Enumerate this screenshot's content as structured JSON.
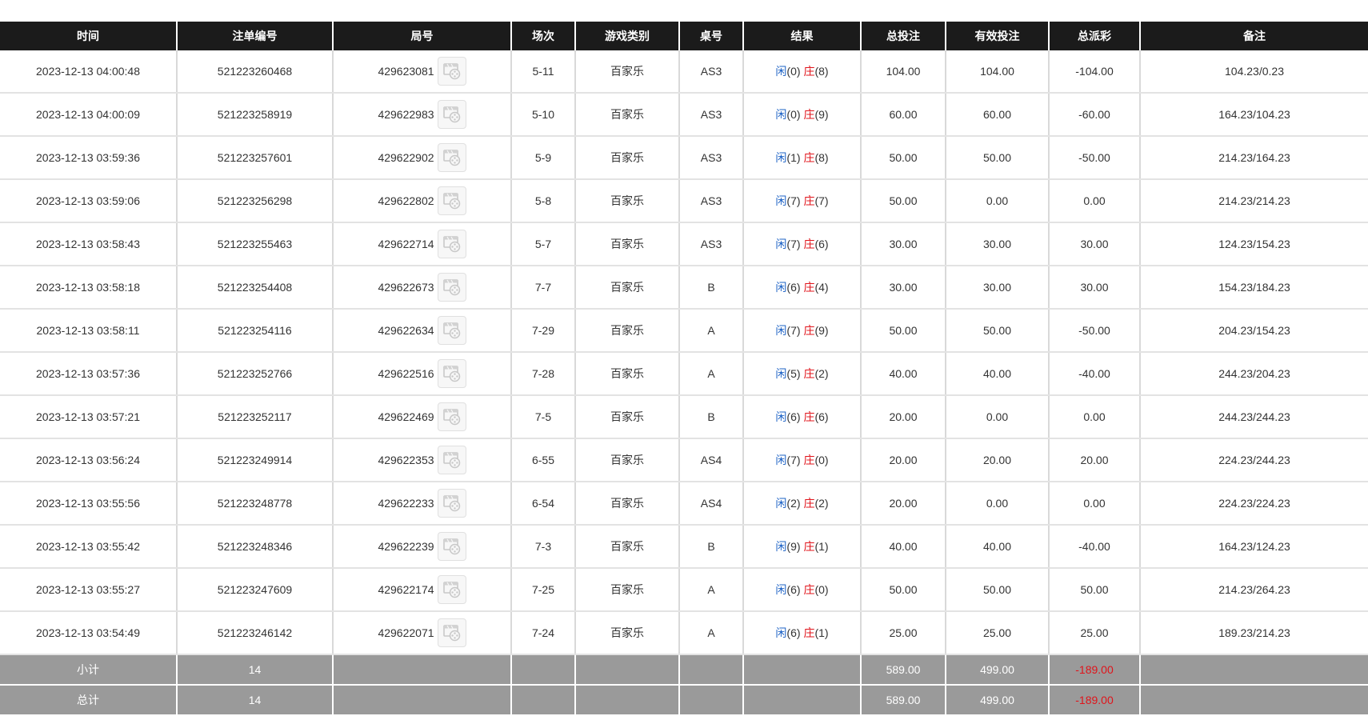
{
  "columns": [
    "时间",
    "注单编号",
    "局号",
    "场次",
    "游戏类别",
    "桌号",
    "结果",
    "总投注",
    "有效投注",
    "总派彩",
    "备注"
  ],
  "labels": {
    "player": "闲",
    "banker": "庄"
  },
  "icons": {
    "replay": "video-replay-icon"
  },
  "colors": {
    "header_bg": "#1b1b1b",
    "summary_bg": "#9a9a9a",
    "player_blue": "#1e63c6",
    "banker_red": "#e0141b"
  },
  "rows": [
    {
      "time": "2023-12-13 04:00:48",
      "bet_id": "521223260468",
      "round": "429623081",
      "session": "5-11",
      "game": "百家乐",
      "table": "AS3",
      "player": "(0)",
      "banker": "(8)",
      "total_bet": "104.00",
      "valid_bet": "104.00",
      "payout": "-104.00",
      "payout_negative": true,
      "note": "104.23/0.23"
    },
    {
      "time": "2023-12-13 04:00:09",
      "bet_id": "521223258919",
      "round": "429622983",
      "session": "5-10",
      "game": "百家乐",
      "table": "AS3",
      "player": "(0)",
      "banker": "(9)",
      "total_bet": "60.00",
      "valid_bet": "60.00",
      "payout": "-60.00",
      "payout_negative": true,
      "note": "164.23/104.23"
    },
    {
      "time": "2023-12-13 03:59:36",
      "bet_id": "521223257601",
      "round": "429622902",
      "session": "5-9",
      "game": "百家乐",
      "table": "AS3",
      "player": "(1)",
      "banker": "(8)",
      "total_bet": "50.00",
      "valid_bet": "50.00",
      "payout": "-50.00",
      "payout_negative": true,
      "note": "214.23/164.23"
    },
    {
      "time": "2023-12-13 03:59:06",
      "bet_id": "521223256298",
      "round": "429622802",
      "session": "5-8",
      "game": "百家乐",
      "table": "AS3",
      "player": "(7)",
      "banker": "(7)",
      "total_bet": "50.00",
      "valid_bet": "0.00",
      "payout": "0.00",
      "payout_negative": false,
      "note": "214.23/214.23"
    },
    {
      "time": "2023-12-13 03:58:43",
      "bet_id": "521223255463",
      "round": "429622714",
      "session": "5-7",
      "game": "百家乐",
      "table": "AS3",
      "player": "(7)",
      "banker": "(6)",
      "total_bet": "30.00",
      "valid_bet": "30.00",
      "payout": "30.00",
      "payout_negative": false,
      "note": "124.23/154.23"
    },
    {
      "time": "2023-12-13 03:58:18",
      "bet_id": "521223254408",
      "round": "429622673",
      "session": "7-7",
      "game": "百家乐",
      "table": "B",
      "player": "(6)",
      "banker": "(4)",
      "total_bet": "30.00",
      "valid_bet": "30.00",
      "payout": "30.00",
      "payout_negative": false,
      "note": "154.23/184.23"
    },
    {
      "time": "2023-12-13 03:58:11",
      "bet_id": "521223254116",
      "round": "429622634",
      "session": "7-29",
      "game": "百家乐",
      "table": "A",
      "player": "(7)",
      "banker": "(9)",
      "total_bet": "50.00",
      "valid_bet": "50.00",
      "payout": "-50.00",
      "payout_negative": true,
      "note": "204.23/154.23"
    },
    {
      "time": "2023-12-13 03:57:36",
      "bet_id": "521223252766",
      "round": "429622516",
      "session": "7-28",
      "game": "百家乐",
      "table": "A",
      "player": "(5)",
      "banker": "(2)",
      "total_bet": "40.00",
      "valid_bet": "40.00",
      "payout": "-40.00",
      "payout_negative": true,
      "note": "244.23/204.23"
    },
    {
      "time": "2023-12-13 03:57:21",
      "bet_id": "521223252117",
      "round": "429622469",
      "session": "7-5",
      "game": "百家乐",
      "table": "B",
      "player": "(6)",
      "banker": "(6)",
      "total_bet": "20.00",
      "valid_bet": "0.00",
      "payout": "0.00",
      "payout_negative": false,
      "note": "244.23/244.23"
    },
    {
      "time": "2023-12-13 03:56:24",
      "bet_id": "521223249914",
      "round": "429622353",
      "session": "6-55",
      "game": "百家乐",
      "table": "AS4",
      "player": "(7)",
      "banker": "(0)",
      "total_bet": "20.00",
      "valid_bet": "20.00",
      "payout": "20.00",
      "payout_negative": false,
      "note": "224.23/244.23"
    },
    {
      "time": "2023-12-13 03:55:56",
      "bet_id": "521223248778",
      "round": "429622233",
      "session": "6-54",
      "game": "百家乐",
      "table": "AS4",
      "player": "(2)",
      "banker": "(2)",
      "total_bet": "20.00",
      "valid_bet": "0.00",
      "payout": "0.00",
      "payout_negative": false,
      "note": "224.23/224.23"
    },
    {
      "time": "2023-12-13 03:55:42",
      "bet_id": "521223248346",
      "round": "429622239",
      "session": "7-3",
      "game": "百家乐",
      "table": "B",
      "player": "(9)",
      "banker": "(1)",
      "total_bet": "40.00",
      "valid_bet": "40.00",
      "payout": "-40.00",
      "payout_negative": true,
      "note": "164.23/124.23"
    },
    {
      "time": "2023-12-13 03:55:27",
      "bet_id": "521223247609",
      "round": "429622174",
      "session": "7-25",
      "game": "百家乐",
      "table": "A",
      "player": "(6)",
      "banker": "(0)",
      "total_bet": "50.00",
      "valid_bet": "50.00",
      "payout": "50.00",
      "payout_negative": false,
      "note": "214.23/264.23"
    },
    {
      "time": "2023-12-13 03:54:49",
      "bet_id": "521223246142",
      "round": "429622071",
      "session": "7-24",
      "game": "百家乐",
      "table": "A",
      "player": "(6)",
      "banker": "(1)",
      "total_bet": "25.00",
      "valid_bet": "25.00",
      "payout": "25.00",
      "payout_negative": false,
      "note": "189.23/214.23"
    }
  ],
  "subtotal": {
    "label": "小计",
    "count": "14",
    "total_bet": "589.00",
    "valid_bet": "499.00",
    "payout": "-189.00"
  },
  "grand_total": {
    "label": "总计",
    "count": "14",
    "total_bet": "589.00",
    "valid_bet": "499.00",
    "payout": "-189.00"
  }
}
